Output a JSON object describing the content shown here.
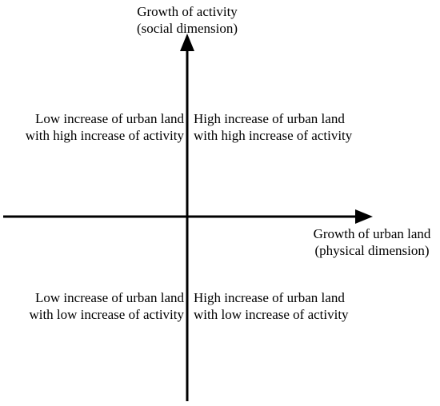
{
  "y_axis": {
    "line1": "Growth of activity",
    "line2": "(social dimension)"
  },
  "x_axis": {
    "line1": "Growth of urban land",
    "line2": "(physical dimension)"
  },
  "quadrants": {
    "top_left": {
      "line1": "Low increase of urban land",
      "line2": "with high increase of activity"
    },
    "top_right": {
      "line1": "High increase of urban land",
      "line2": "with high increase of activity"
    },
    "bottom_left": {
      "line1": "Low increase of urban land",
      "line2": "with low increase of activity"
    },
    "bottom_right": {
      "line1": "High increase of urban land",
      "line2": "with low increase of activity"
    }
  }
}
